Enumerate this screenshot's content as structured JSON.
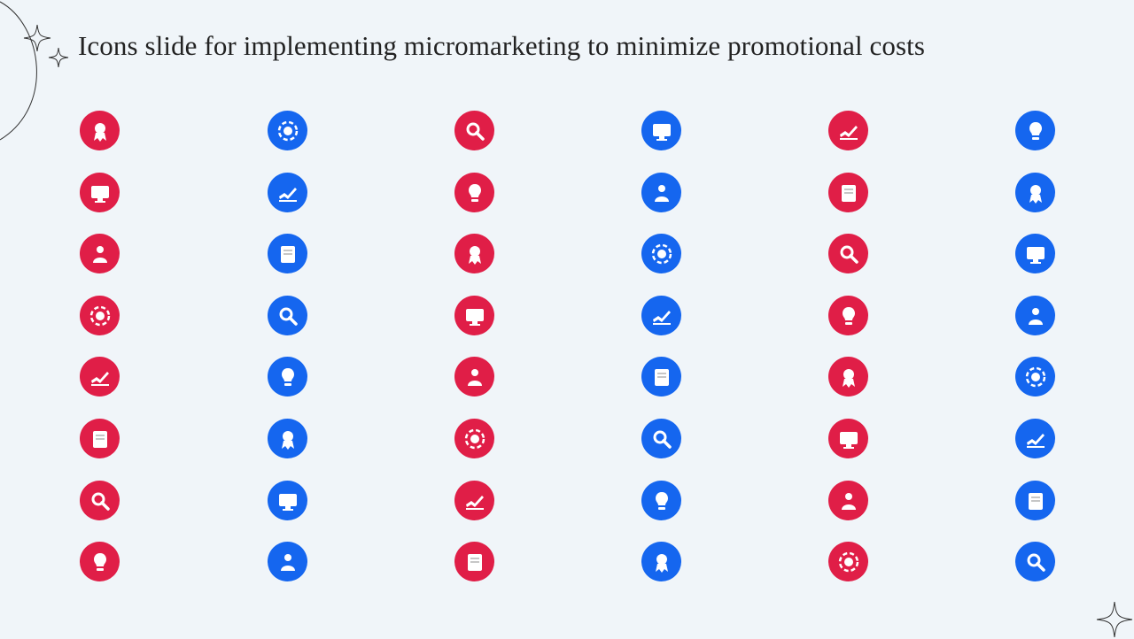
{
  "slide": {
    "title": "Icons slide for implementing micromarketing to minimize promotional costs"
  },
  "colors": {
    "background": "#f0f5f9",
    "red": "#e01e47",
    "blue": "#1566ef",
    "title": "#222222"
  },
  "icon_grid": {
    "columns": [
      {
        "color": "red",
        "icons": [
          "award-ribbon-icon",
          "ad-search-icon",
          "hand-coin-icon",
          "document-cycle-icon",
          "hearts-people-icon",
          "document-refresh-icon",
          "clipboard-search-icon",
          "web-layout-icon"
        ]
      },
      {
        "color": "blue",
        "icons": [
          "customer-stars-icon",
          "hand-bulb-icon",
          "analytics-search-icon",
          "gear-click-icon",
          "idea-network-icon",
          "scissors-coin-icon",
          "target-arrow-icon",
          "dashboard-monitor-icon"
        ]
      },
      {
        "color": "red",
        "icons": [
          "money-growth-icon",
          "browser-money-icon",
          "people-conflict-icon",
          "map-people-icon",
          "browser-layout-icon",
          "monitor-gears-icon",
          "phone-call-icon",
          "chat-person-icon"
        ]
      },
      {
        "color": "blue",
        "icons": [
          "hand-dollar-icon",
          "hand-upload-icon",
          "factory-icon",
          "head-idea-icon",
          "hand-tap-icon",
          "hub-network-icon",
          "box-gear-icon",
          "handshake-icon"
        ]
      },
      {
        "color": "red",
        "icons": [
          "browser-chart-icon",
          "team-people-icon",
          "gear-bulb-icon",
          "growth-cycle-icon",
          "person-reading-icon",
          "clock-arrow-icon",
          "people-growth-icon",
          "chart-refresh-icon"
        ]
      },
      {
        "color": "blue",
        "icons": [
          "laptop-message-icon",
          "bulb-idea-icon",
          "hands-diamond-icon",
          "gears-cycle-icon",
          "presentation-icon",
          "certificate-icon",
          "tools-gear-icon",
          "plant-growth-icon"
        ]
      }
    ]
  }
}
